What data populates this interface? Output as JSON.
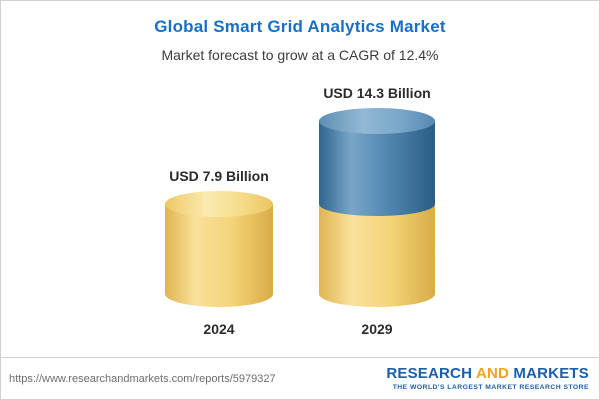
{
  "header": {
    "title": "Global Smart Grid Analytics Market",
    "subtitle": "Market forecast to grow at a CAGR of 12.4%",
    "title_color": "#1a6fc4"
  },
  "chart_data": {
    "type": "bar",
    "subtype": "3d-cylinder",
    "title": "Global Smart Grid Analytics Market",
    "subtitle": "Market forecast to grow at a CAGR of 12.4%",
    "categories": [
      "2024",
      "2029"
    ],
    "values": [
      7.9,
      14.3
    ],
    "value_labels": [
      "USD 7.9 Billion",
      "USD 14.3 Billion"
    ],
    "unit": "USD Billion",
    "cagr_percent": 12.4,
    "ylim": [
      0,
      15
    ],
    "grid": false,
    "legend": "none",
    "colors": {
      "base_segment": "#F0CC6E",
      "growth_segment": "#3F7CAD"
    },
    "notes": "2029 bar is stacked: yellow base equal to 2024 value plus blue growth segment on top"
  },
  "footer": {
    "url": "https://www.researchandmarkets.com/reports/5979327",
    "logo": {
      "word1": "RESEARCH",
      "word2": "AND",
      "word3": "MARKETS",
      "tagline": "THE WORLD'S LARGEST MARKET RESEARCH STORE"
    }
  }
}
